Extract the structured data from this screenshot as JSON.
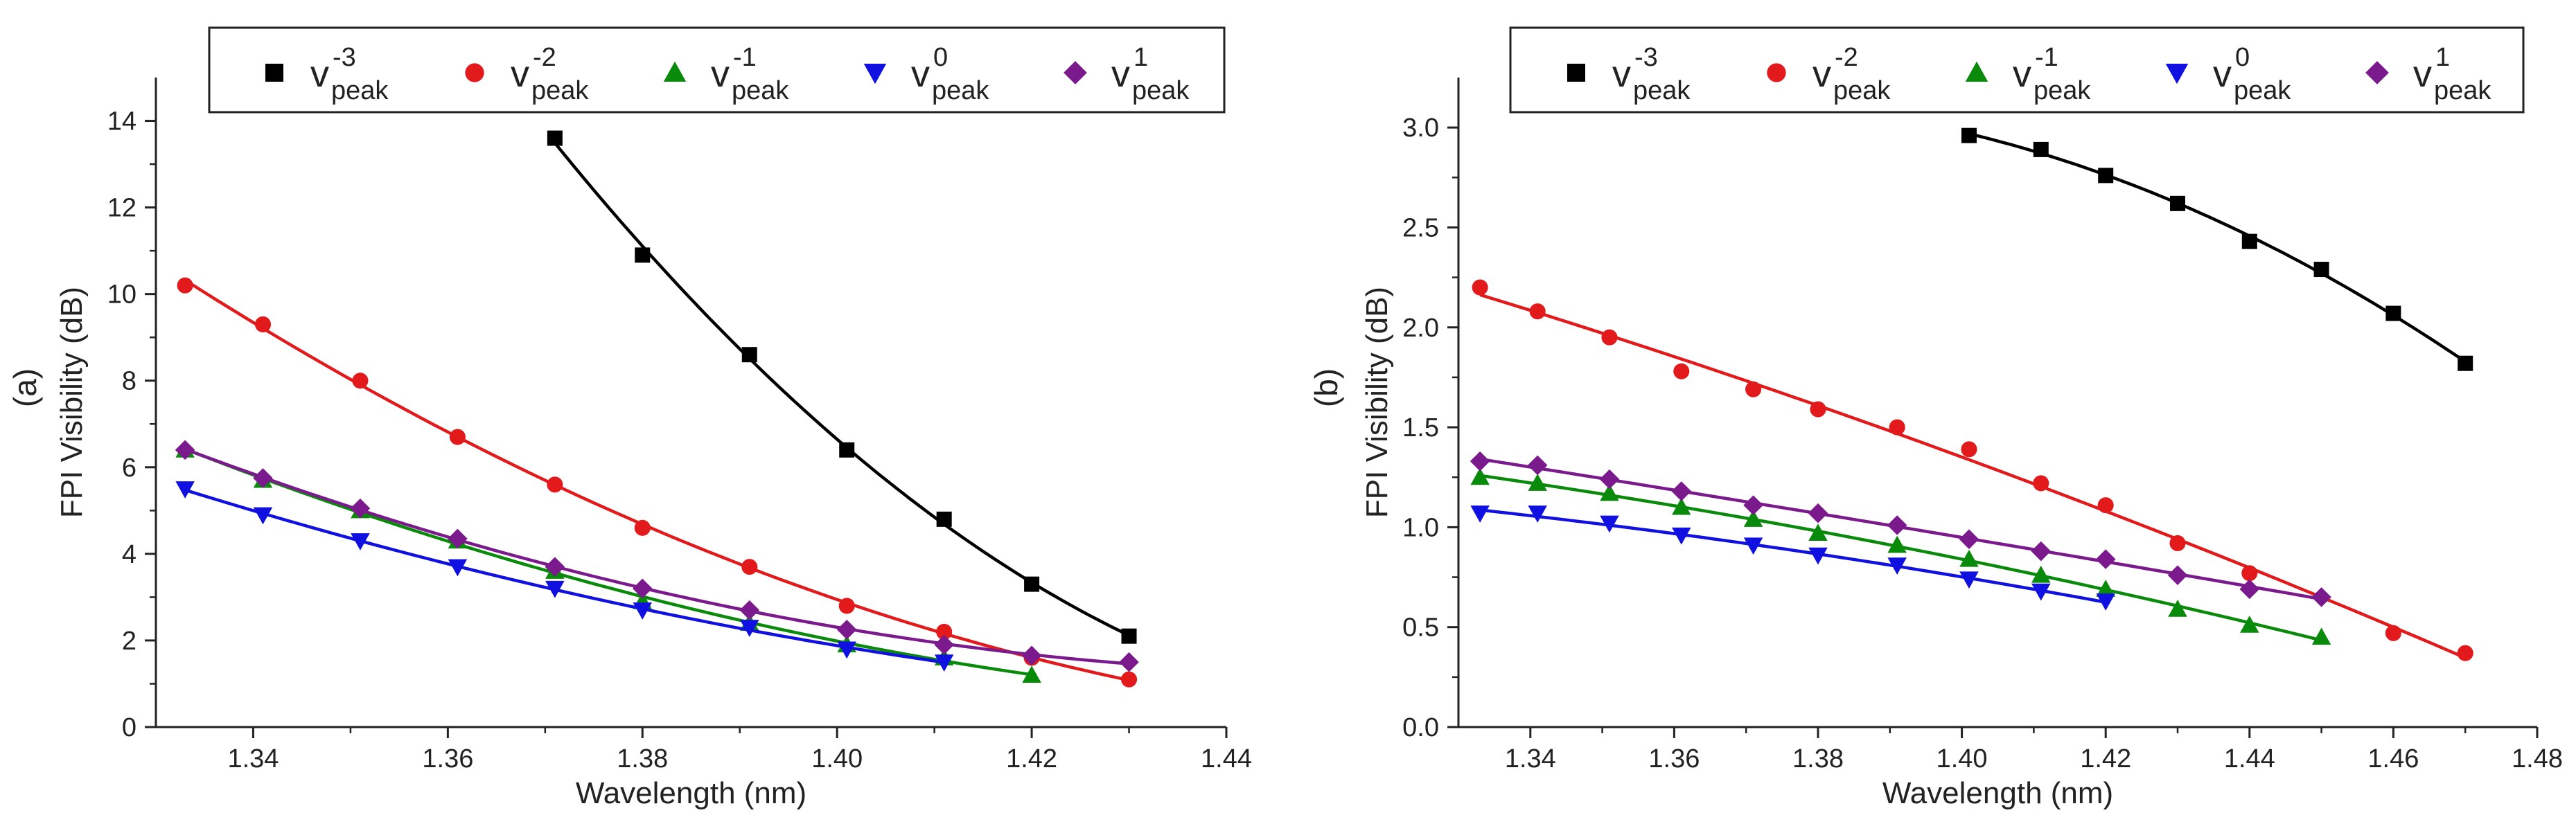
{
  "figure": {
    "background": "#ffffff",
    "axis_color": "#222222"
  },
  "series_styles": [
    {
      "key": "m3",
      "color": "#000000",
      "marker": "square"
    },
    {
      "key": "m2",
      "color": "#e31a1c",
      "marker": "circle"
    },
    {
      "key": "m1",
      "color": "#0a8a0a",
      "marker": "triangle-up"
    },
    {
      "key": "z0",
      "color": "#1010e0",
      "marker": "triangle-down"
    },
    {
      "key": "p1",
      "color": "#7b1a8c",
      "marker": "diamond"
    }
  ],
  "chart_data": [
    {
      "type": "scatter",
      "panel_label": "(a)",
      "xlabel": "Wavelength (nm)",
      "ylabel": "FPI Visibility (dB)",
      "xlim": [
        1.33,
        1.44
      ],
      "ylim": [
        0,
        15
      ],
      "xticks": [
        1.34,
        1.36,
        1.38,
        1.4,
        1.42,
        1.44
      ],
      "xtick_labels": [
        "1.34",
        "1.36",
        "1.38",
        "1.40",
        "1.42",
        "1.44"
      ],
      "yticks": [
        0,
        2,
        4,
        6,
        8,
        10,
        12,
        14
      ],
      "ytick_labels": [
        "0",
        "2",
        "4",
        "6",
        "8",
        "10",
        "12",
        "14"
      ],
      "grid": false,
      "legend_position": "top",
      "fit_lines": true,
      "series": [
        {
          "name": "v peak -3",
          "base": "v",
          "sub": "peak",
          "sup": "-3",
          "key": "m3",
          "x": [
            1.371,
            1.38,
            1.391,
            1.401,
            1.411,
            1.42,
            1.43
          ],
          "y": [
            13.6,
            10.9,
            8.6,
            6.4,
            4.8,
            3.3,
            2.1
          ]
        },
        {
          "name": "v peak -2",
          "base": "v",
          "sub": "peak",
          "sup": "-2",
          "key": "m2",
          "x": [
            1.333,
            1.341,
            1.351,
            1.361,
            1.371,
            1.38,
            1.391,
            1.401,
            1.411,
            1.42,
            1.43
          ],
          "y": [
            10.2,
            9.3,
            8.0,
            6.7,
            5.6,
            4.6,
            3.7,
            2.8,
            2.2,
            1.6,
            1.1
          ]
        },
        {
          "name": "v peak -1",
          "base": "v",
          "sub": "peak",
          "sup": "-1",
          "key": "m1",
          "x": [
            1.333,
            1.341,
            1.351,
            1.361,
            1.371,
            1.38,
            1.391,
            1.401,
            1.411,
            1.42
          ],
          "y": [
            6.4,
            5.7,
            5.0,
            4.3,
            3.6,
            2.9,
            2.4,
            1.9,
            1.6,
            1.2
          ]
        },
        {
          "name": "v peak 0",
          "base": "v",
          "sub": "peak",
          "sup": "0",
          "key": "z0",
          "x": [
            1.333,
            1.341,
            1.351,
            1.361,
            1.371,
            1.38,
            1.391,
            1.401,
            1.411
          ],
          "y": [
            5.5,
            4.9,
            4.3,
            3.7,
            3.2,
            2.7,
            2.3,
            1.8,
            1.5
          ]
        },
        {
          "name": "v peak 1",
          "base": "v",
          "sub": "peak",
          "sup": "1",
          "key": "p1",
          "x": [
            1.333,
            1.341,
            1.351,
            1.361,
            1.371,
            1.38,
            1.391,
            1.401,
            1.411,
            1.42,
            1.43
          ],
          "y": [
            6.4,
            5.75,
            5.05,
            4.35,
            3.7,
            3.2,
            2.7,
            2.25,
            1.9,
            1.65,
            1.5
          ]
        }
      ]
    },
    {
      "type": "scatter",
      "panel_label": "(b)",
      "xlabel": "Wavelength (nm)",
      "ylabel": "FPI Visibility (dB)",
      "xlim": [
        1.33,
        1.48
      ],
      "ylim": [
        0,
        3.25
      ],
      "xticks": [
        1.34,
        1.36,
        1.38,
        1.4,
        1.42,
        1.44,
        1.46,
        1.48
      ],
      "xtick_labels": [
        "1.34",
        "1.36",
        "1.38",
        "1.40",
        "1.42",
        "1.44",
        "1.46",
        "1.48"
      ],
      "yticks": [
        0.0,
        0.5,
        1.0,
        1.5,
        2.0,
        2.5,
        3.0
      ],
      "ytick_labels": [
        "0.0",
        "0.5",
        "1.0",
        "1.5",
        "2.0",
        "2.5",
        "3.0"
      ],
      "grid": false,
      "legend_position": "top",
      "fit_lines": true,
      "series": [
        {
          "name": "v peak -3",
          "base": "v",
          "sub": "peak",
          "sup": "-3",
          "key": "m3",
          "x": [
            1.401,
            1.411,
            1.42,
            1.43,
            1.44,
            1.45,
            1.46,
            1.47
          ],
          "y": [
            2.96,
            2.89,
            2.76,
            2.62,
            2.43,
            2.29,
            2.07,
            1.82
          ]
        },
        {
          "name": "v peak -2",
          "base": "v",
          "sub": "peak",
          "sup": "-2",
          "key": "m2",
          "x": [
            1.333,
            1.341,
            1.351,
            1.361,
            1.371,
            1.38,
            1.391,
            1.401,
            1.411,
            1.42,
            1.43,
            1.44,
            1.46,
            1.47
          ],
          "y": [
            2.2,
            2.08,
            1.95,
            1.78,
            1.69,
            1.59,
            1.5,
            1.39,
            1.22,
            1.11,
            0.92,
            0.77,
            0.47,
            0.37
          ]
        },
        {
          "name": "v peak -1",
          "base": "v",
          "sub": "peak",
          "sup": "-1",
          "key": "m1",
          "x": [
            1.333,
            1.341,
            1.351,
            1.361,
            1.371,
            1.38,
            1.391,
            1.401,
            1.411,
            1.42,
            1.43,
            1.44,
            1.45
          ],
          "y": [
            1.25,
            1.22,
            1.17,
            1.1,
            1.04,
            0.97,
            0.91,
            0.84,
            0.76,
            0.69,
            0.59,
            0.51,
            0.45
          ]
        },
        {
          "name": "v peak 0",
          "base": "v",
          "sub": "peak",
          "sup": "0",
          "key": "z0",
          "x": [
            1.333,
            1.341,
            1.351,
            1.361,
            1.371,
            1.38,
            1.391,
            1.401,
            1.411,
            1.42
          ],
          "y": [
            1.07,
            1.07,
            1.02,
            0.96,
            0.91,
            0.86,
            0.81,
            0.74,
            0.68,
            0.63
          ]
        },
        {
          "name": "v peak 1",
          "base": "v",
          "sub": "peak",
          "sup": "1",
          "key": "p1",
          "x": [
            1.333,
            1.341,
            1.351,
            1.361,
            1.371,
            1.38,
            1.391,
            1.401,
            1.411,
            1.42,
            1.43,
            1.44,
            1.45
          ],
          "y": [
            1.33,
            1.31,
            1.24,
            1.18,
            1.11,
            1.07,
            1.01,
            0.94,
            0.88,
            0.84,
            0.76,
            0.69,
            0.65
          ]
        }
      ]
    }
  ]
}
